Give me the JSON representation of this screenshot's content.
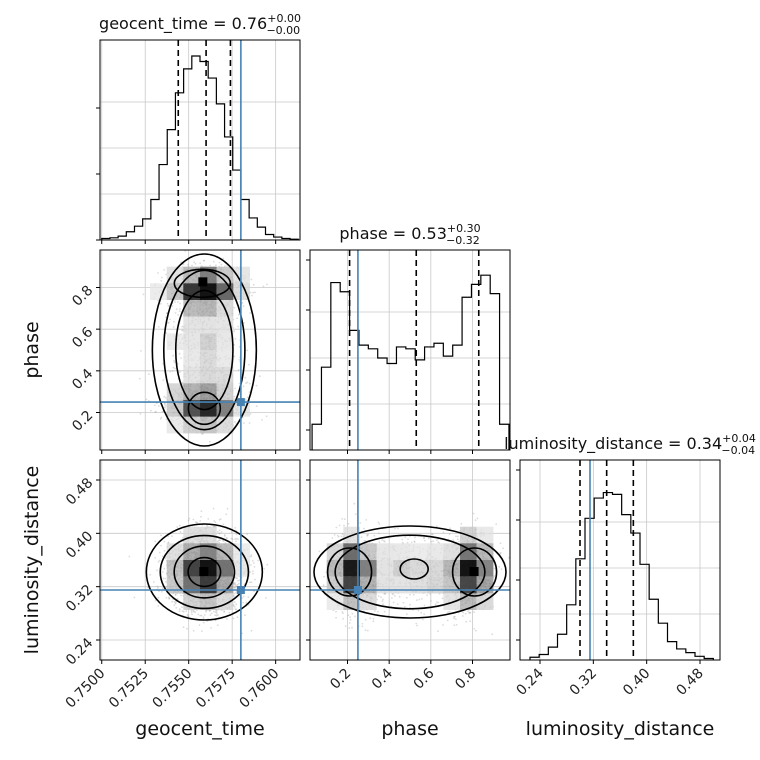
{
  "chart_data": {
    "type": "corner",
    "parameters": [
      "geocent_time",
      "phase",
      "luminosity_distance"
    ],
    "titles": {
      "geocent_time": {
        "prefix": "geocent_time = ",
        "median": "0.76",
        "plus": "+0.00",
        "minus": "−0.00"
      },
      "phase": {
        "prefix": "phase = ",
        "median": "0.53",
        "plus": "+0.30",
        "minus": "−0.32"
      },
      "luminosity_distance": {
        "prefix": "luminosity_distance = ",
        "median": "0.34",
        "plus": "+0.04",
        "minus": "−0.04"
      }
    },
    "ranges": {
      "geocent_time": [
        0.7499,
        0.7614
      ],
      "phase": [
        0.02,
        0.98
      ],
      "luminosity_distance": [
        0.21,
        0.51
      ]
    },
    "ticks": {
      "geocent_time": [
        "0.7500",
        "0.7525",
        "0.7550",
        "0.7575",
        "0.7600"
      ],
      "phase": [
        "0.2",
        "0.4",
        "0.6",
        "0.8"
      ],
      "luminosity_distance": [
        "0.24",
        "0.32",
        "0.40",
        "0.48"
      ]
    },
    "truths": {
      "geocent_time": 0.758,
      "phase": 0.25,
      "luminosity_distance": 0.315
    },
    "quantiles": {
      "geocent_time": [
        0.7544,
        0.756,
        0.7574
      ],
      "phase": [
        0.21,
        0.53,
        0.83
      ],
      "luminosity_distance": [
        0.3,
        0.34,
        0.38
      ]
    },
    "histograms": {
      "geocent_time": [
        0.008,
        0.012,
        0.021,
        0.045,
        0.075,
        0.115,
        0.22,
        0.41,
        0.6,
        0.8,
        0.93,
        1.0,
        0.97,
        0.88,
        0.74,
        0.56,
        0.38,
        0.22,
        0.12,
        0.07,
        0.03,
        0.016,
        0.008,
        0.004
      ],
      "phase": [
        0.14,
        0.45,
        0.91,
        0.86,
        0.65,
        0.57,
        0.55,
        0.5,
        0.47,
        0.56,
        0.55,
        0.49,
        0.56,
        0.58,
        0.51,
        0.57,
        0.83,
        0.9,
        0.95,
        0.85,
        0.14
      ],
      "luminosity_distance": [
        0.015,
        0.03,
        0.07,
        0.14,
        0.3,
        0.55,
        0.77,
        0.88,
        0.91,
        0.9,
        0.79,
        0.69,
        0.52,
        0.33,
        0.2,
        0.1,
        0.06,
        0.04,
        0.02,
        0.008
      ]
    },
    "grid": true,
    "truth_color": "#4682b4",
    "line_color": "#000000"
  }
}
